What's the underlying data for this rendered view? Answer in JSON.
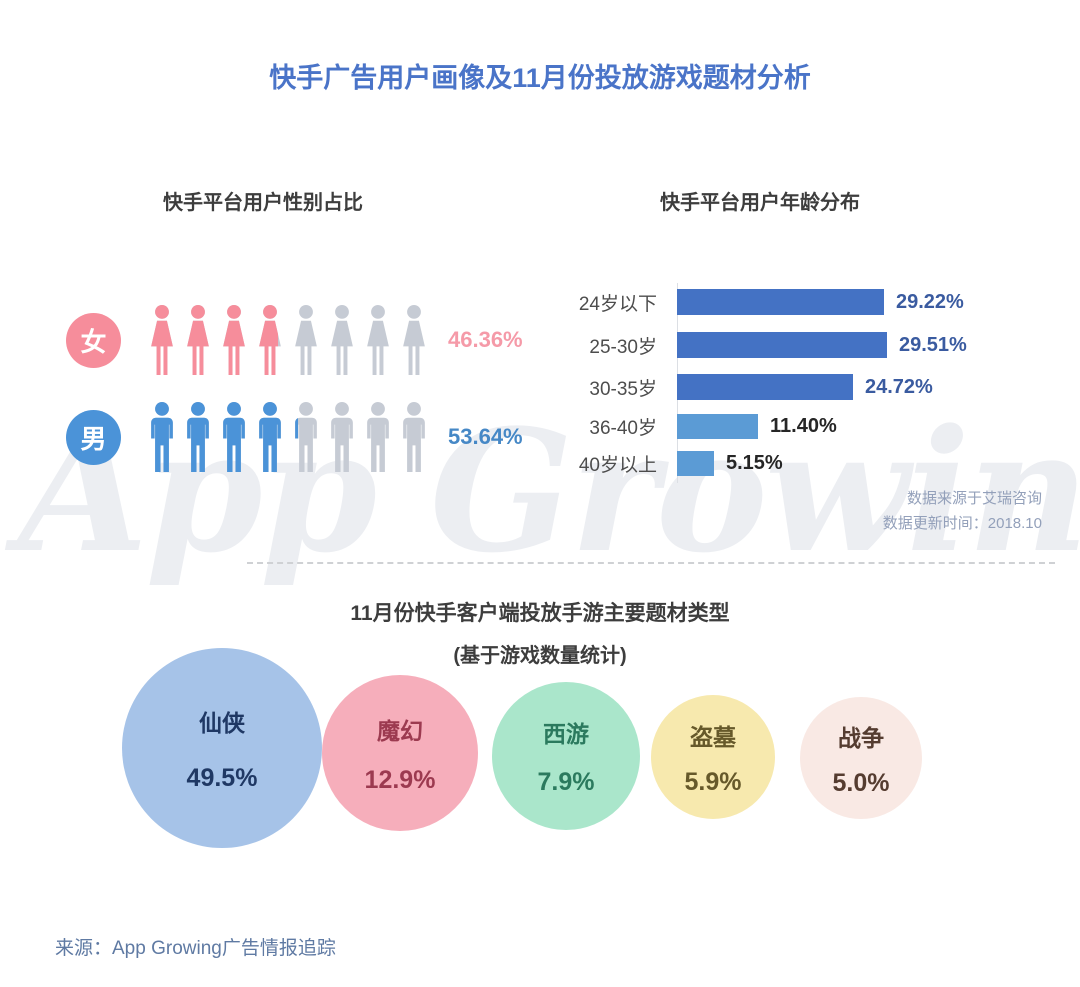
{
  "title": "快手广告用户画像及11月份投放游戏题材分析",
  "title_color": "#4a74c8",
  "watermark": "App Growing",
  "footer": {
    "source": "来源：App Growing广告情报追踪"
  },
  "chart_data": [
    {
      "type": "pictogram",
      "title": "快手平台用户性别占比",
      "categories": [
        "女",
        "男"
      ],
      "values": [
        46.36,
        53.64
      ],
      "value_labels": [
        "46.36%",
        "53.64%"
      ],
      "icon_total": 8,
      "icon_types": [
        "female",
        "male"
      ],
      "active_colors": [
        "#f68d9b",
        "#4b93d8"
      ],
      "badge_colors": [
        "#f6играй8d9b",
        "#4b93d8"
      ],
      "value_label_colors": [
        "#f59aa8",
        "#4688c6"
      ],
      "inactive_color": "#c6cbd4"
    },
    {
      "type": "bar",
      "title": "快手平台用户年龄分布",
      "categories": [
        "24岁以下",
        "25-30岁",
        "30-35岁",
        "36-40岁",
        "40岁以上"
      ],
      "values": [
        29.22,
        29.51,
        24.72,
        11.4,
        5.15
      ],
      "value_labels": [
        "29.22%",
        "29.51%",
        "24.72%",
        "11.40%",
        "5.15%"
      ],
      "bar_colors": [
        "#4472c4",
        "#4472c4",
        "#4472c4",
        "#5b9bd5",
        "#5b9bd5"
      ],
      "value_label_colors": [
        "#3a5ba0",
        "#3a5ba0",
        "#3a5ba0",
        "#262626",
        "#262626"
      ],
      "orientation": "horizontal",
      "xlim": [
        0,
        30
      ],
      "grid": false,
      "notes": [
        "数据来源于艾瑞咨询",
        "数据更新时间：2018.10"
      ]
    },
    {
      "type": "bubble",
      "title": "11月份快手客户端投放手游主要题材类型",
      "subtitle": "(基于游戏数量统计)",
      "categories": [
        "仙侠",
        "魔幻",
        "西游",
        "盗墓",
        "战争"
      ],
      "values": [
        49.5,
        12.9,
        7.9,
        5.9,
        5.0
      ],
      "value_labels": [
        "49.5%",
        "12.9%",
        "7.9%",
        "5.9%",
        "5.0%"
      ],
      "bubble_colors": [
        "#a6c3e8",
        "#f6aebb",
        "#aae6cb",
        "#f7e9ae",
        "#f9e9e4"
      ],
      "text_colors": [
        "#1f3864",
        "#9c3a50",
        "#2b7a5e",
        "#66592a",
        "#553c30"
      ]
    }
  ]
}
